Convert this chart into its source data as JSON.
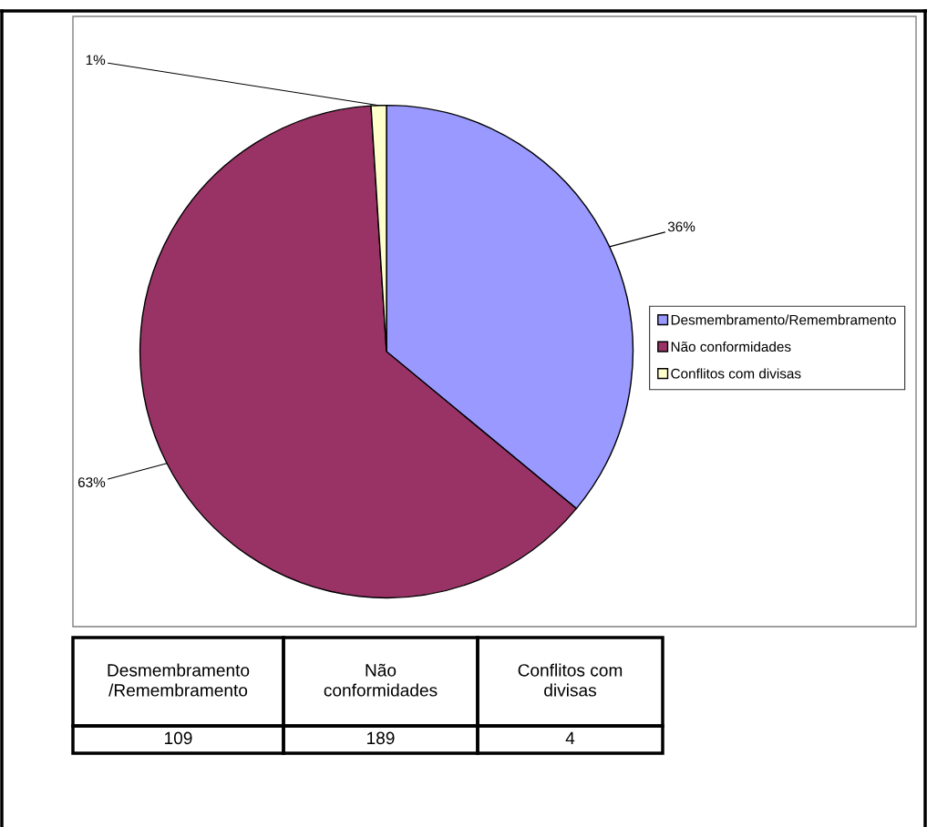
{
  "chart_data": {
    "type": "pie",
    "categories": [
      "Desmembramento/Remembramento",
      "Não conformidades",
      "Conflitos com divisas"
    ],
    "values": [
      36,
      63,
      1
    ],
    "colors": [
      "#9999ff",
      "#993366",
      "#ffffcc"
    ],
    "value_labels": [
      "36%",
      "63%",
      "1%"
    ],
    "annotations": [
      "109",
      "189",
      "4"
    ],
    "legend": "right"
  }
}
